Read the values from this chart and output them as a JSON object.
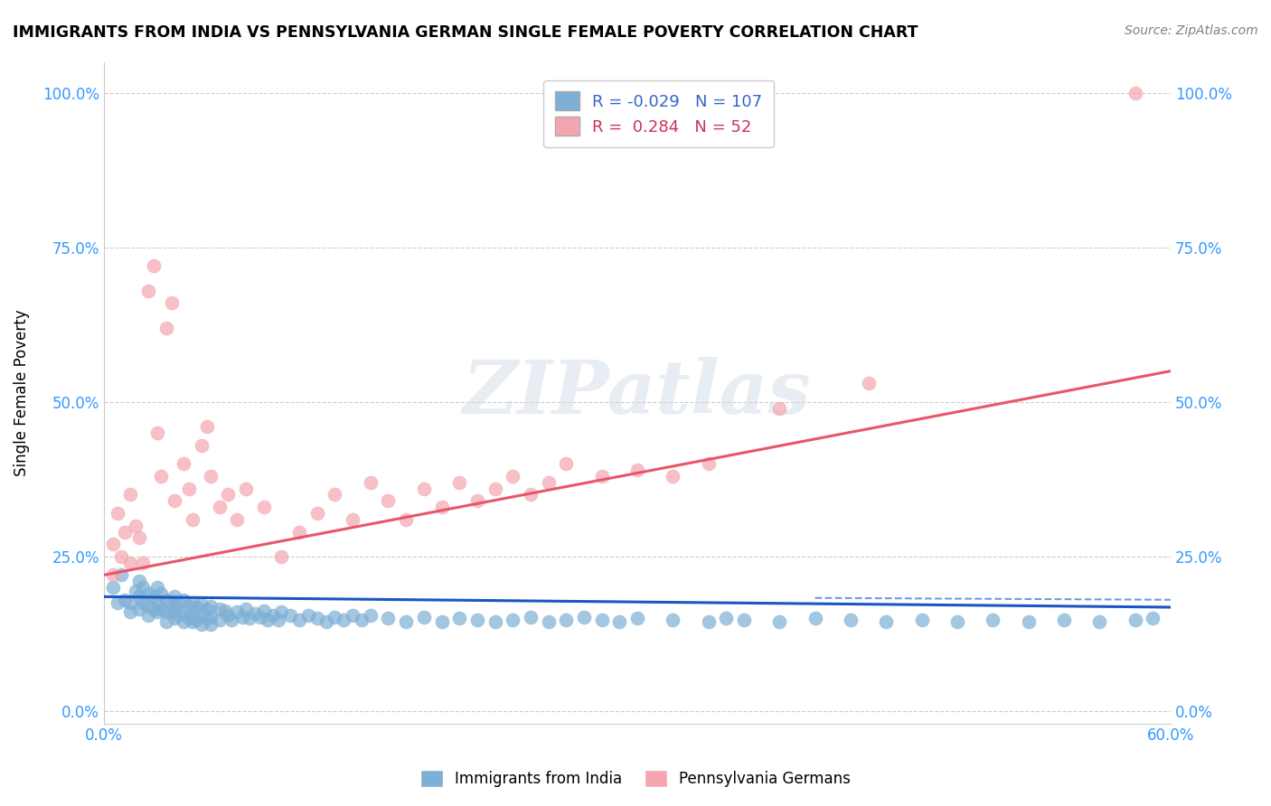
{
  "title": "IMMIGRANTS FROM INDIA VS PENNSYLVANIA GERMAN SINGLE FEMALE POVERTY CORRELATION CHART",
  "source_text": "Source: ZipAtlas.com",
  "xlabel": "",
  "ylabel": "Single Female Poverty",
  "xlim": [
    0.0,
    0.6
  ],
  "ylim": [
    -0.02,
    1.05
  ],
  "ytick_labels": [
    "0.0%",
    "25.0%",
    "50.0%",
    "75.0%",
    "100.0%"
  ],
  "ytick_values": [
    0.0,
    0.25,
    0.5,
    0.75,
    1.0
  ],
  "xtick_values": [
    0.0,
    0.1,
    0.2,
    0.3,
    0.4,
    0.5,
    0.6
  ],
  "R_blue": -0.029,
  "N_blue": 107,
  "R_pink": 0.284,
  "N_pink": 52,
  "blue_color": "#7eb0d5",
  "pink_color": "#f4a6b0",
  "blue_line_color": "#1a56c4",
  "pink_line_color": "#e8566a",
  "watermark": "ZIPatlas",
  "legend_label_blue": "Immigrants from India",
  "legend_label_pink": "Pennsylvania Germans",
  "blue_scatter_x": [
    0.005,
    0.008,
    0.01,
    0.012,
    0.015,
    0.015,
    0.018,
    0.02,
    0.02,
    0.02,
    0.022,
    0.022,
    0.025,
    0.025,
    0.025,
    0.028,
    0.028,
    0.03,
    0.03,
    0.03,
    0.032,
    0.032,
    0.035,
    0.035,
    0.035,
    0.038,
    0.038,
    0.04,
    0.04,
    0.04,
    0.042,
    0.042,
    0.045,
    0.045,
    0.045,
    0.048,
    0.048,
    0.05,
    0.05,
    0.05,
    0.052,
    0.052,
    0.055,
    0.055,
    0.055,
    0.058,
    0.058,
    0.06,
    0.06,
    0.06,
    0.065,
    0.065,
    0.068,
    0.07,
    0.072,
    0.075,
    0.078,
    0.08,
    0.082,
    0.085,
    0.088,
    0.09,
    0.092,
    0.095,
    0.098,
    0.1,
    0.105,
    0.11,
    0.115,
    0.12,
    0.125,
    0.13,
    0.135,
    0.14,
    0.145,
    0.15,
    0.16,
    0.17,
    0.18,
    0.19,
    0.2,
    0.21,
    0.22,
    0.23,
    0.24,
    0.25,
    0.26,
    0.27,
    0.28,
    0.29,
    0.3,
    0.32,
    0.34,
    0.35,
    0.36,
    0.38,
    0.4,
    0.42,
    0.44,
    0.46,
    0.48,
    0.5,
    0.52,
    0.54,
    0.56,
    0.58,
    0.59
  ],
  "blue_scatter_y": [
    0.2,
    0.175,
    0.22,
    0.18,
    0.175,
    0.16,
    0.195,
    0.21,
    0.185,
    0.165,
    0.2,
    0.175,
    0.19,
    0.17,
    0.155,
    0.185,
    0.165,
    0.2,
    0.175,
    0.16,
    0.19,
    0.165,
    0.18,
    0.16,
    0.145,
    0.175,
    0.16,
    0.185,
    0.165,
    0.15,
    0.175,
    0.155,
    0.18,
    0.16,
    0.145,
    0.17,
    0.15,
    0.175,
    0.155,
    0.145,
    0.168,
    0.148,
    0.172,
    0.155,
    0.14,
    0.165,
    0.15,
    0.17,
    0.152,
    0.14,
    0.165,
    0.148,
    0.162,
    0.155,
    0.148,
    0.16,
    0.152,
    0.165,
    0.15,
    0.158,
    0.152,
    0.162,
    0.148,
    0.155,
    0.148,
    0.16,
    0.155,
    0.148,
    0.155,
    0.15,
    0.145,
    0.152,
    0.148,
    0.155,
    0.148,
    0.155,
    0.15,
    0.145,
    0.152,
    0.145,
    0.15,
    0.148,
    0.145,
    0.148,
    0.152,
    0.145,
    0.148,
    0.152,
    0.148,
    0.145,
    0.15,
    0.148,
    0.145,
    0.15,
    0.148,
    0.145,
    0.15,
    0.148,
    0.145,
    0.148,
    0.145,
    0.148,
    0.145,
    0.148,
    0.145,
    0.148,
    0.15
  ],
  "pink_scatter_x": [
    0.005,
    0.005,
    0.008,
    0.01,
    0.012,
    0.015,
    0.015,
    0.018,
    0.02,
    0.022,
    0.025,
    0.028,
    0.03,
    0.032,
    0.035,
    0.038,
    0.04,
    0.045,
    0.048,
    0.05,
    0.055,
    0.058,
    0.06,
    0.065,
    0.07,
    0.075,
    0.08,
    0.09,
    0.1,
    0.11,
    0.12,
    0.13,
    0.14,
    0.15,
    0.16,
    0.17,
    0.18,
    0.19,
    0.2,
    0.21,
    0.22,
    0.23,
    0.24,
    0.25,
    0.26,
    0.28,
    0.3,
    0.32,
    0.34,
    0.38,
    0.43,
    0.58
  ],
  "pink_scatter_y": [
    0.22,
    0.27,
    0.32,
    0.25,
    0.29,
    0.35,
    0.24,
    0.3,
    0.28,
    0.24,
    0.68,
    0.72,
    0.45,
    0.38,
    0.62,
    0.66,
    0.34,
    0.4,
    0.36,
    0.31,
    0.43,
    0.46,
    0.38,
    0.33,
    0.35,
    0.31,
    0.36,
    0.33,
    0.25,
    0.29,
    0.32,
    0.35,
    0.31,
    0.37,
    0.34,
    0.31,
    0.36,
    0.33,
    0.37,
    0.34,
    0.36,
    0.38,
    0.35,
    0.37,
    0.4,
    0.38,
    0.39,
    0.38,
    0.4,
    0.49,
    0.53,
    1.0
  ],
  "blue_trend_x": [
    0.0,
    0.6
  ],
  "blue_trend_y": [
    0.185,
    0.168
  ],
  "pink_trend_x": [
    0.0,
    0.6
  ],
  "pink_trend_y": [
    0.22,
    0.55
  ]
}
